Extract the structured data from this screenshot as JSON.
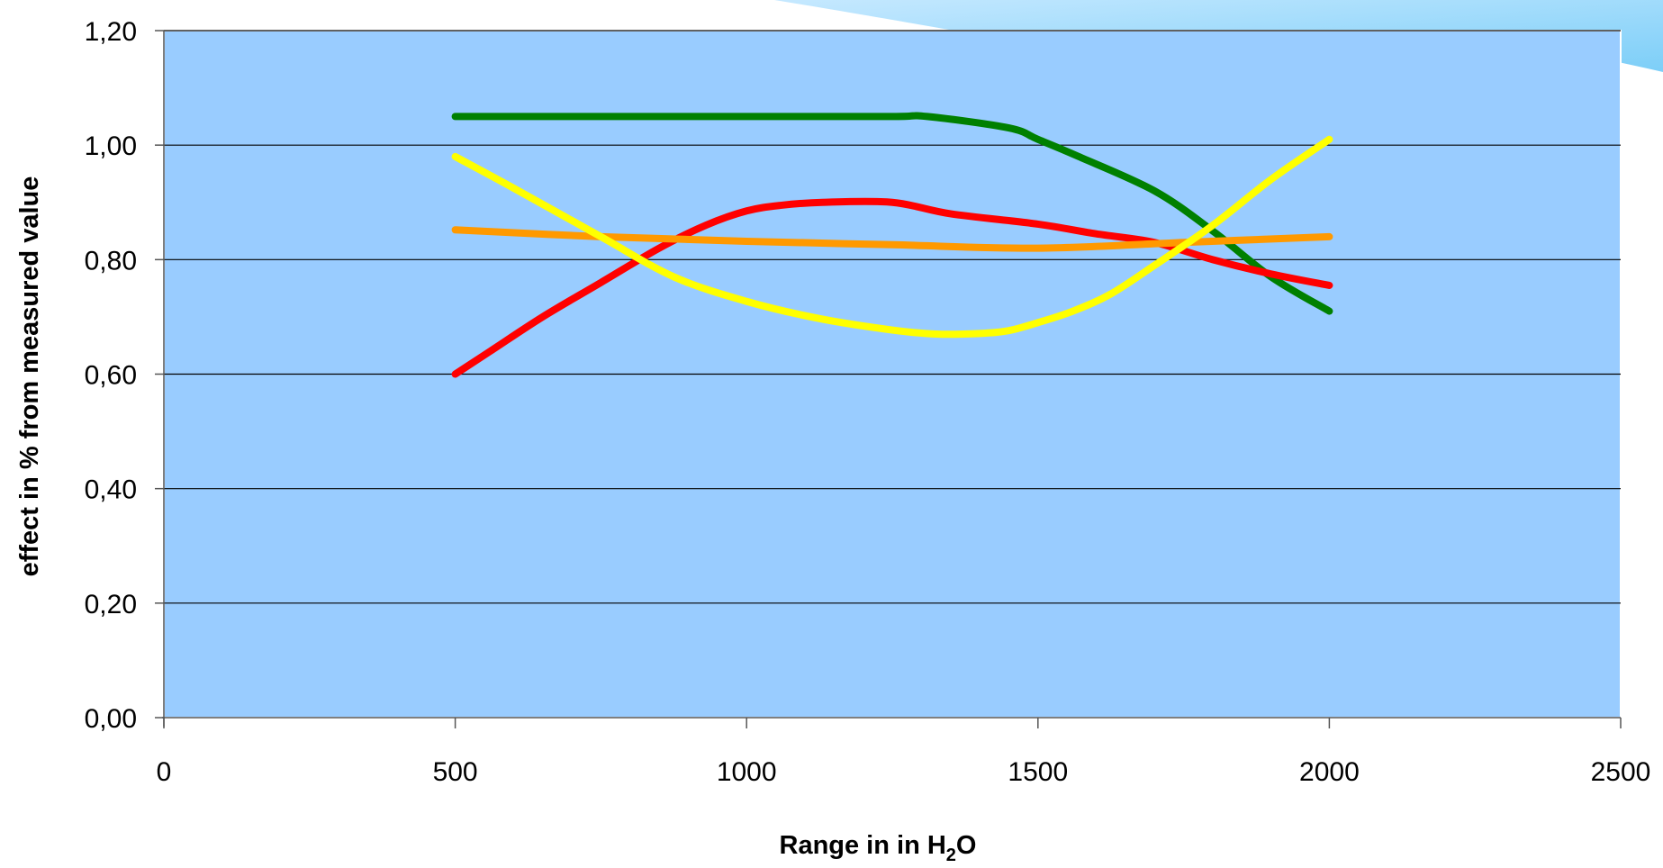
{
  "chart_data": {
    "type": "line",
    "title": "",
    "xlabel": "Range in in H",
    "xlabel_subscript": "2",
    "xlabel_suffix": "O",
    "ylabel": "effect in % from measured value",
    "xlim": [
      0,
      2500
    ],
    "ylim": [
      0,
      1.2
    ],
    "xticks": [
      "0",
      "500",
      "1000",
      "1500",
      "2000",
      "2500"
    ],
    "xtick_values": [
      0,
      500,
      1000,
      1500,
      2000,
      2500
    ],
    "yticks": [
      "0,00",
      "0,20",
      "0,40",
      "0,60",
      "0,80",
      "1,00",
      "1,20"
    ],
    "ytick_values": [
      0,
      0.2,
      0.4,
      0.6,
      0.8,
      1.0,
      1.2
    ],
    "grid": "horizontal",
    "plot_background": "#99ccff",
    "series": [
      {
        "color": "#008000",
        "x": [
          500,
          750,
          1000,
          1250,
          1310,
          1450,
          1500,
          1570,
          1700,
          1800,
          1900,
          2000
        ],
        "y": [
          1.05,
          1.05,
          1.05,
          1.05,
          1.05,
          1.03,
          1.01,
          0.98,
          0.92,
          0.85,
          0.77,
          0.71
        ]
      },
      {
        "color": "#ff0000",
        "x": [
          500,
          560,
          650,
          750,
          850,
          930,
          1000,
          1060,
          1130,
          1250,
          1350,
          1500,
          1600,
          1700,
          1800,
          1900,
          2000
        ],
        "y": [
          0.6,
          0.64,
          0.7,
          0.76,
          0.82,
          0.86,
          0.885,
          0.895,
          0.9,
          0.9,
          0.88,
          0.862,
          0.845,
          0.83,
          0.8,
          0.775,
          0.755
        ]
      },
      {
        "color": "#ff9900",
        "x": [
          500,
          750,
          1000,
          1250,
          1500,
          1750,
          2000
        ],
        "y": [
          0.852,
          0.84,
          0.832,
          0.826,
          0.82,
          0.83,
          0.84
        ]
      },
      {
        "color": "#ffff00",
        "x": [
          500,
          600,
          750,
          875,
          1000,
          1125,
          1250,
          1325,
          1400,
          1450,
          1500,
          1560,
          1625,
          1700,
          1800,
          1900,
          2000
        ],
        "y": [
          0.98,
          0.925,
          0.84,
          0.77,
          0.727,
          0.697,
          0.677,
          0.67,
          0.671,
          0.676,
          0.69,
          0.71,
          0.74,
          0.79,
          0.86,
          0.94,
          1.01
        ]
      }
    ]
  }
}
